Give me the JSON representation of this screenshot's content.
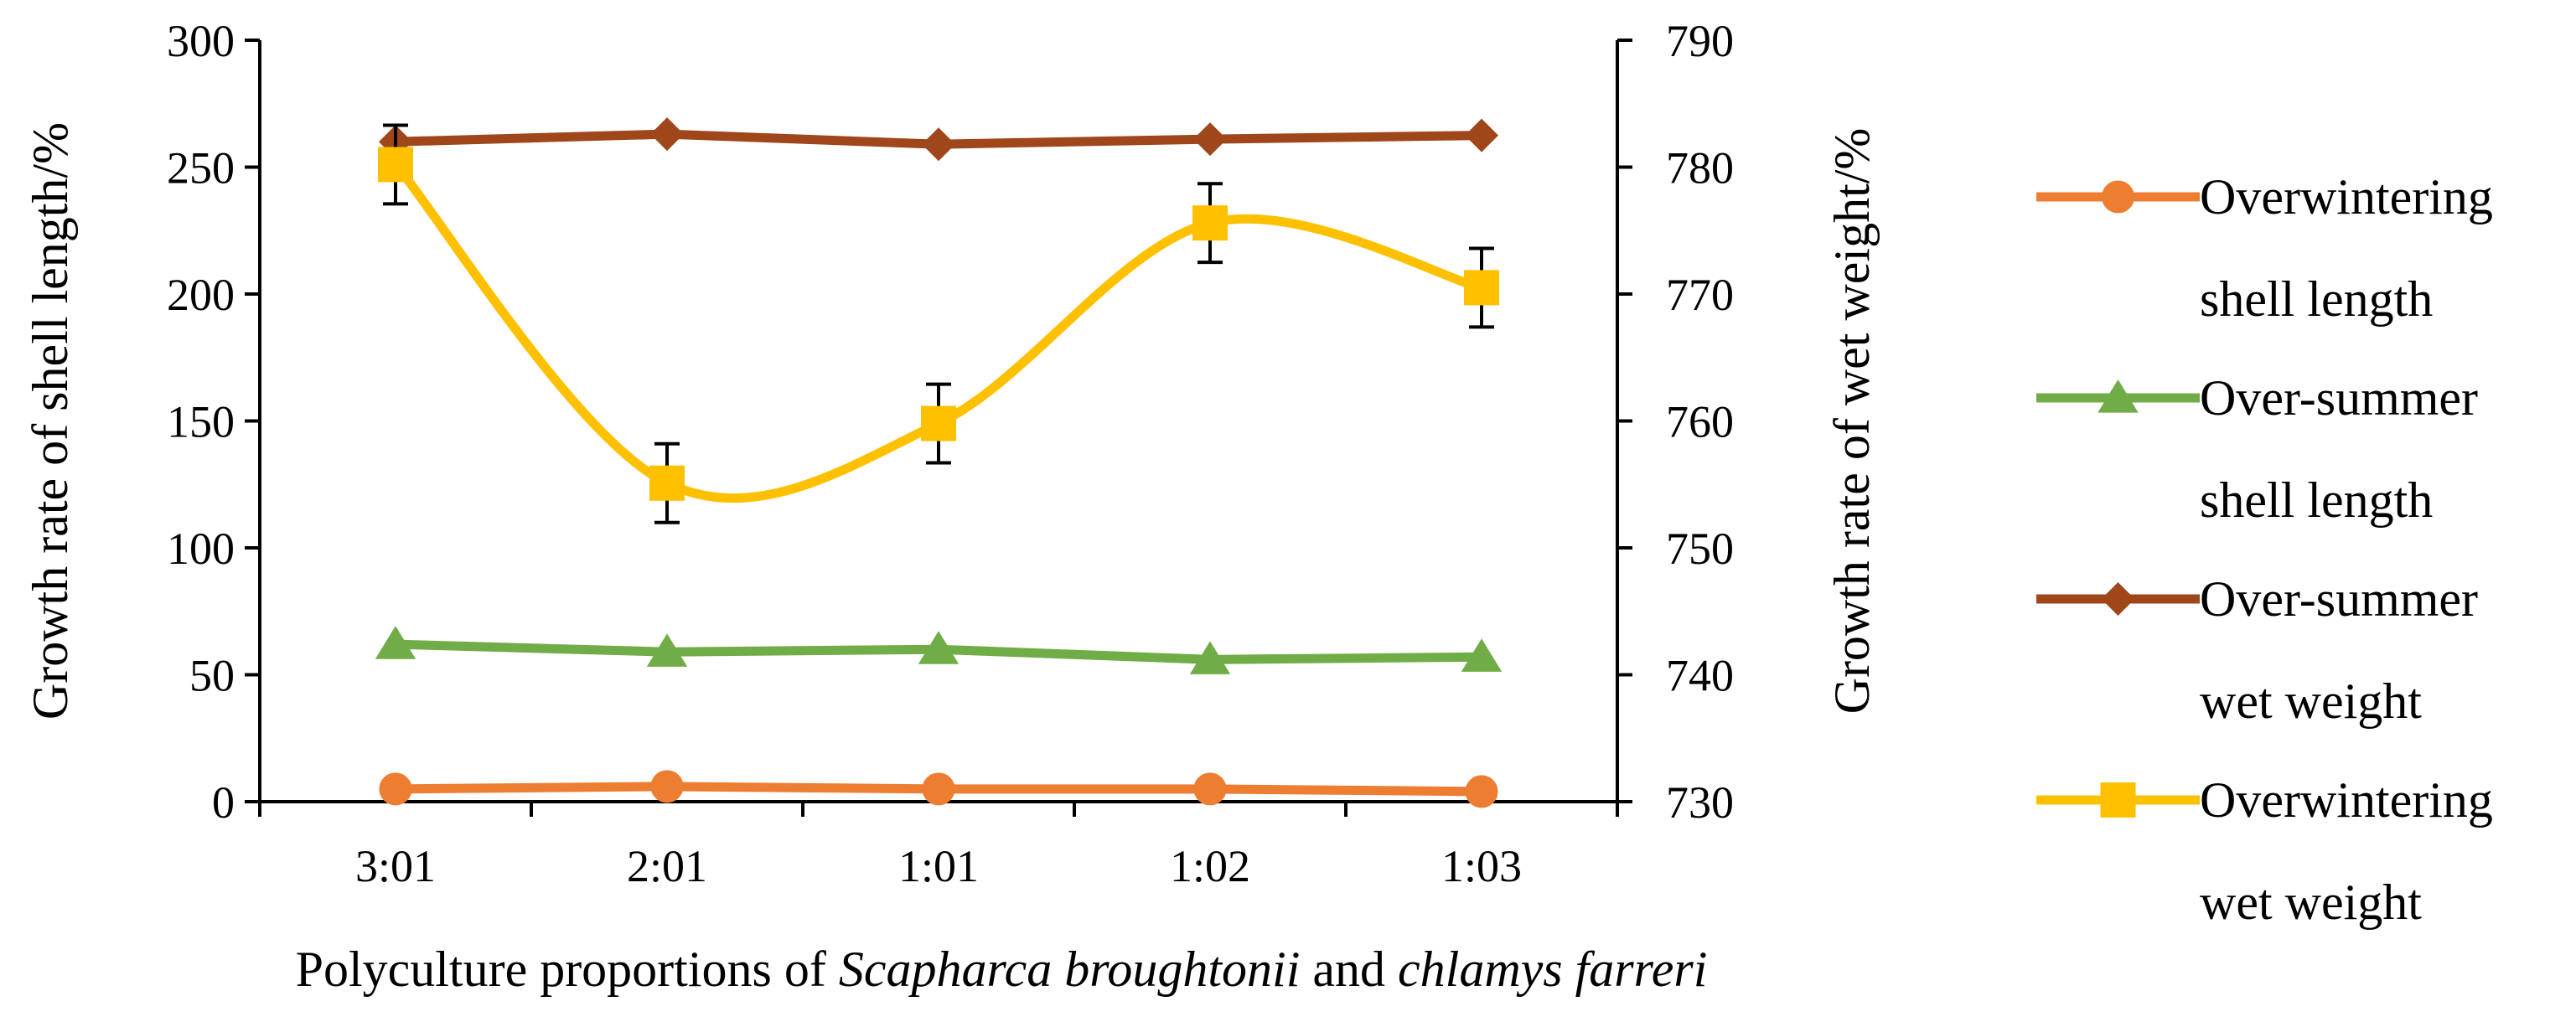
{
  "chart_data": {
    "type": "line",
    "title": "",
    "categories": [
      "3:01",
      "2:01",
      "1:01",
      "1:02",
      "1:03"
    ],
    "xlabel": {
      "prefix": "Polyculture proportions of ",
      "species1": "Scapharca broughtonii",
      "connector": " and ",
      "species2": "chlamys farreri"
    },
    "ylabel_left": "Growth rate of shell length/%",
    "ylabel_right": "Growth rate of wet weight/%",
    "ylim_left": [
      0,
      300
    ],
    "ylim_right": [
      730,
      790
    ],
    "yticks_left": [
      "0",
      "50",
      "100",
      "150",
      "200",
      "250",
      "300"
    ],
    "yticks_right": [
      "730",
      "740",
      "750",
      "760",
      "770",
      "780",
      "790"
    ],
    "series": [
      {
        "name": "Overwintering shell length",
        "legend_lines": [
          "Overwintering",
          "shell length"
        ],
        "axis": "left",
        "marker": "circle",
        "smooth": false,
        "color": "#ED7D31",
        "values": [
          5,
          6,
          5,
          5,
          4
        ],
        "errors": null
      },
      {
        "name": "Over-summer shell length",
        "legend_lines": [
          "Over-summer",
          "shell length"
        ],
        "axis": "left",
        "marker": "triangle",
        "smooth": false,
        "color": "#70AD47",
        "values": [
          62,
          59,
          60,
          56,
          57
        ],
        "errors": null
      },
      {
        "name": "Over-summer wet weight",
        "legend_lines": [
          "Over-summer",
          "wet weight"
        ],
        "axis": "right",
        "marker": "diamond",
        "smooth": false,
        "color": "#A0461B",
        "values": [
          782,
          782.6,
          781.8,
          782.2,
          782.5
        ],
        "errors": null
      },
      {
        "name": "Overwintering wet weight",
        "legend_lines": [
          "Overwintering",
          "wet weight"
        ],
        "axis": "right",
        "marker": "square",
        "smooth": true,
        "color": "#FFC000",
        "values": [
          780.2,
          755.1,
          759.8,
          775.6,
          770.5
        ],
        "errors": [
          3.1,
          3.1,
          3.1,
          3.1,
          3.1
        ]
      }
    ],
    "legend_position": "right"
  }
}
